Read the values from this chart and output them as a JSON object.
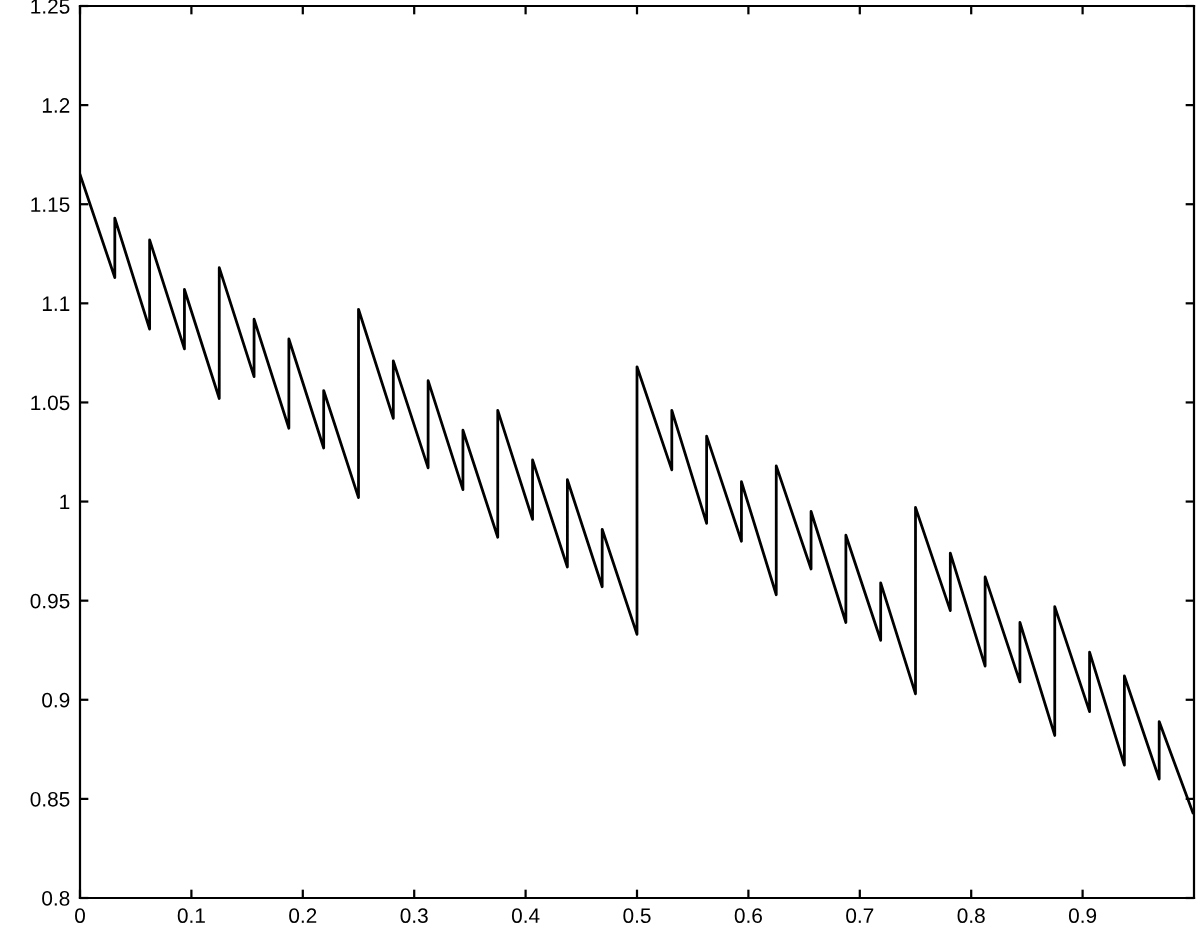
{
  "chart_data": {
    "type": "line",
    "xlim": [
      0,
      1
    ],
    "ylim": [
      0.8,
      1.25
    ],
    "xticks": [
      0,
      0.1,
      0.2,
      0.3,
      0.4,
      0.5,
      0.6,
      0.7,
      0.8,
      0.9
    ],
    "yticks": [
      0.8,
      0.85,
      0.9,
      0.95,
      1,
      1.05,
      1.1,
      1.15,
      1.2,
      1.25
    ],
    "grid": false,
    "legend": false,
    "marker": "none",
    "line_style": "solid",
    "series": [
      {
        "color": "#000000",
        "x": [
          0,
          0.03125,
          0.03125,
          0.0625,
          0.0625,
          0.09375,
          0.09375,
          0.125,
          0.125,
          0.15625,
          0.15625,
          0.1875,
          0.1875,
          0.21875,
          0.21875,
          0.25,
          0.25,
          0.28125,
          0.28125,
          0.3125,
          0.3125,
          0.34375,
          0.34375,
          0.375,
          0.375,
          0.40625,
          0.40625,
          0.4375,
          0.4375,
          0.46875,
          0.46875,
          0.5,
          0.5,
          0.53125,
          0.53125,
          0.5625,
          0.5625,
          0.59375,
          0.59375,
          0.625,
          0.625,
          0.65625,
          0.65625,
          0.6875,
          0.6875,
          0.71875,
          0.71875,
          0.75,
          0.75,
          0.78125,
          0.78125,
          0.8125,
          0.8125,
          0.84375,
          0.84375,
          0.875,
          0.875,
          0.90625,
          0.90625,
          0.9375,
          0.9375,
          0.96875,
          0.96875,
          0.999
        ],
        "values": [
          1.165,
          1.113,
          1.143,
          1.087,
          1.132,
          1.077,
          1.107,
          1.052,
          1.118,
          1.063,
          1.092,
          1.037,
          1.082,
          1.027,
          1.056,
          1.002,
          1.097,
          1.042,
          1.071,
          1.017,
          1.061,
          1.006,
          1.036,
          0.982,
          1.046,
          0.991,
          1.021,
          0.967,
          1.011,
          0.957,
          0.986,
          0.933,
          1.068,
          1.016,
          1.046,
          0.989,
          1.033,
          0.98,
          1.01,
          0.953,
          1.018,
          0.966,
          0.995,
          0.939,
          0.983,
          0.93,
          0.959,
          0.903,
          0.997,
          0.945,
          0.974,
          0.917,
          0.962,
          0.909,
          0.939,
          0.882,
          0.947,
          0.894,
          0.924,
          0.867,
          0.912,
          0.86,
          0.889,
          0.843
        ]
      }
    ]
  }
}
